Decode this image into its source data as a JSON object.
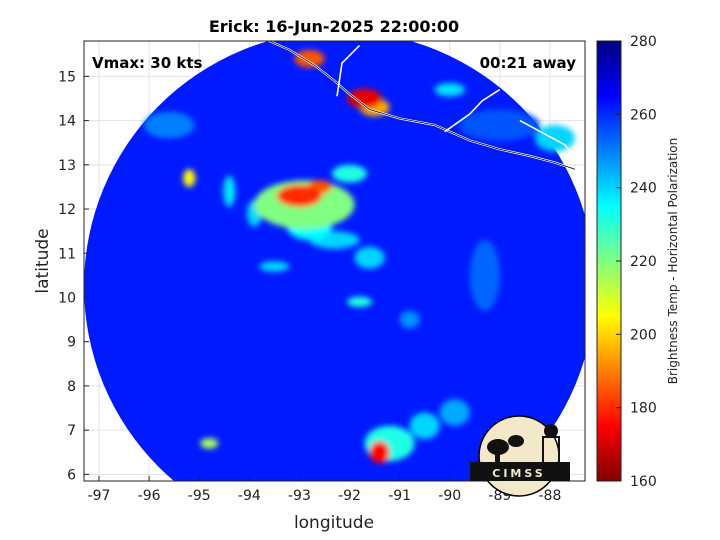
{
  "chart_data": {
    "type": "heatmap",
    "title": "Erick: 16-Jun-2025 22:00:00",
    "annotation_left": "Vmax: 30 kts",
    "annotation_right": "00:21 away",
    "xlabel": "longitude",
    "ylabel": "latitude",
    "xlim": [
      -97.3,
      -87.3
    ],
    "ylim": [
      5.85,
      15.8
    ],
    "xticks": [
      -97,
      -96,
      -95,
      -94,
      -93,
      -92,
      -91,
      -90,
      -89,
      -88
    ],
    "yticks": [
      6,
      7,
      8,
      9,
      10,
      11,
      12,
      13,
      14,
      15
    ],
    "grid": true,
    "colorbar": {
      "label": "Brightness Temp - Horizontal Polarization",
      "range": [
        160,
        280
      ],
      "ticks": [
        160,
        180,
        200,
        220,
        240,
        260,
        280
      ],
      "colormap": "jet"
    },
    "swath": {
      "center_lon": -92.2,
      "center_lat": 10.25,
      "radius_deg": 5.1
    },
    "background_tb": 262,
    "features": [
      {
        "lon": -93.0,
        "lat": 12.3,
        "rx": 0.45,
        "ry": 0.25,
        "tb": 180
      },
      {
        "lon": -92.6,
        "lat": 12.5,
        "rx": 0.25,
        "ry": 0.15,
        "tb": 185
      },
      {
        "lon": -92.9,
        "lat": 12.1,
        "rx": 1.0,
        "ry": 0.55,
        "tb": 220
      },
      {
        "lon": -92.8,
        "lat": 11.6,
        "rx": 0.45,
        "ry": 0.3,
        "tb": 235
      },
      {
        "lon": -92.3,
        "lat": 11.3,
        "rx": 0.5,
        "ry": 0.2,
        "tb": 240
      },
      {
        "lon": -92.0,
        "lat": 12.8,
        "rx": 0.35,
        "ry": 0.2,
        "tb": 232
      },
      {
        "lon": -95.2,
        "lat": 12.7,
        "rx": 0.12,
        "ry": 0.2,
        "tb": 205
      },
      {
        "lon": -94.4,
        "lat": 12.4,
        "rx": 0.12,
        "ry": 0.35,
        "tb": 238
      },
      {
        "lon": -93.9,
        "lat": 11.9,
        "rx": 0.15,
        "ry": 0.3,
        "tb": 240
      },
      {
        "lon": -91.6,
        "lat": 10.9,
        "rx": 0.3,
        "ry": 0.25,
        "tb": 240
      },
      {
        "lon": -91.8,
        "lat": 9.9,
        "rx": 0.25,
        "ry": 0.12,
        "tb": 232
      },
      {
        "lon": -93.5,
        "lat": 10.7,
        "rx": 0.3,
        "ry": 0.12,
        "tb": 240
      },
      {
        "lon": -91.4,
        "lat": 6.5,
        "rx": 0.2,
        "ry": 0.25,
        "tb": 175
      },
      {
        "lon": -91.2,
        "lat": 6.7,
        "rx": 0.5,
        "ry": 0.4,
        "tb": 232
      },
      {
        "lon": -90.5,
        "lat": 7.1,
        "rx": 0.3,
        "ry": 0.3,
        "tb": 240
      },
      {
        "lon": -89.9,
        "lat": 7.4,
        "rx": 0.3,
        "ry": 0.3,
        "tb": 245
      },
      {
        "lon": -94.8,
        "lat": 6.7,
        "rx": 0.18,
        "ry": 0.12,
        "tb": 215
      },
      {
        "lon": -92.8,
        "lat": 15.4,
        "rx": 0.3,
        "ry": 0.2,
        "tb": 185
      },
      {
        "lon": -91.7,
        "lat": 14.5,
        "rx": 0.35,
        "ry": 0.22,
        "tb": 172
      },
      {
        "lon": -91.5,
        "lat": 14.3,
        "rx": 0.3,
        "ry": 0.2,
        "tb": 195
      },
      {
        "lon": -90.0,
        "lat": 14.7,
        "rx": 0.3,
        "ry": 0.15,
        "tb": 238
      },
      {
        "lon": -89.0,
        "lat": 13.9,
        "rx": 0.8,
        "ry": 0.35,
        "tb": 255
      },
      {
        "lon": -87.9,
        "lat": 13.6,
        "rx": 0.4,
        "ry": 0.3,
        "tb": 240
      },
      {
        "lon": -95.6,
        "lat": 13.9,
        "rx": 0.5,
        "ry": 0.3,
        "tb": 250
      },
      {
        "lon": -90.8,
        "lat": 9.5,
        "rx": 0.2,
        "ry": 0.2,
        "tb": 248
      },
      {
        "lon": -89.3,
        "lat": 10.5,
        "rx": 0.3,
        "ry": 0.8,
        "tb": 253
      }
    ],
    "coastline": [
      [
        -93.7,
        15.85
      ],
      [
        -93.2,
        15.6
      ],
      [
        -92.7,
        15.25
      ],
      [
        -92.3,
        14.9
      ],
      [
        -92.0,
        14.6
      ],
      [
        -91.6,
        14.25
      ],
      [
        -91.0,
        14.05
      ],
      [
        -90.3,
        13.9
      ],
      [
        -89.6,
        13.55
      ],
      [
        -89.0,
        13.35
      ],
      [
        -88.4,
        13.2
      ],
      [
        -87.9,
        13.05
      ],
      [
        -87.5,
        12.9
      ]
    ],
    "borders": [
      [
        [
          -92.25,
          14.55
        ],
        [
          -92.15,
          15.3
        ],
        [
          -91.8,
          15.7
        ]
      ],
      [
        [
          -90.1,
          13.75
        ],
        [
          -89.6,
          14.15
        ],
        [
          -89.35,
          14.45
        ],
        [
          -89.0,
          14.7
        ]
      ],
      [
        [
          -88.6,
          14.0
        ],
        [
          -87.7,
          13.45
        ],
        [
          -87.4,
          13.0
        ]
      ]
    ]
  },
  "logo": {
    "text": "CIMSS"
  }
}
